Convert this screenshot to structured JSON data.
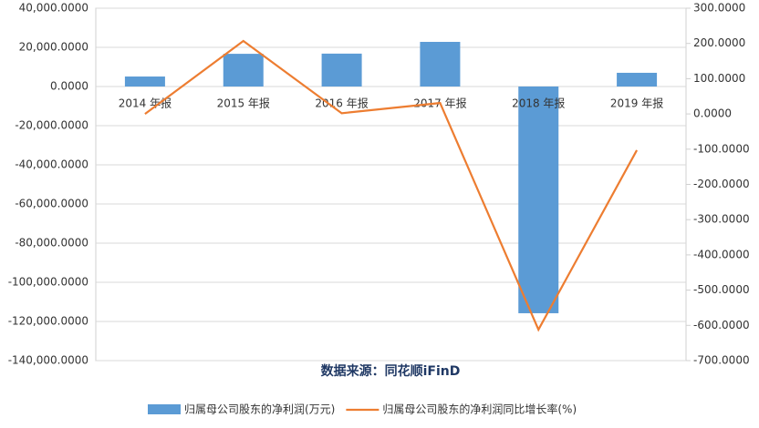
{
  "chart_data": {
    "type": "bar",
    "source": "数据来源：同花顺iFinD",
    "categories": [
      "2014 年报",
      "2015 年报",
      "2016 年报",
      "2017 年报",
      "2018 年报",
      "2019 年报"
    ],
    "series": [
      {
        "name": "归属母公司股东的净利润(万元)",
        "type": "bar",
        "color": "#5b9bd5",
        "values": [
          5100,
          16700,
          16800,
          22800,
          -115800,
          7000
        ]
      },
      {
        "name": "归属母公司股东的净利润同比增长率(%)",
        "type": "line",
        "axis": "y2",
        "color": "#ed7d31",
        "values": [
          0,
          207,
          2,
          31,
          -612,
          -103
        ]
      }
    ],
    "ylim": [
      -140000,
      40000
    ],
    "yticks": [
      {
        "value": -140000,
        "label": "-140,000.0000"
      },
      {
        "value": -120000,
        "label": "-120,000.0000"
      },
      {
        "value": -100000,
        "label": "-100,000.0000"
      },
      {
        "value": -80000,
        "label": "-80,000.0000"
      },
      {
        "value": -60000,
        "label": "-60,000.0000"
      },
      {
        "value": -40000,
        "label": "-40,000.0000"
      },
      {
        "value": -20000,
        "label": "-20,000.0000"
      },
      {
        "value": 0,
        "label": "0.0000"
      },
      {
        "value": 20000,
        "label": "20,000.0000"
      },
      {
        "value": 40000,
        "label": "40,000.0000"
      }
    ],
    "y2lim": [
      -700,
      300
    ],
    "y2ticks": [
      {
        "value": -700,
        "label": "-700.0000"
      },
      {
        "value": -600,
        "label": "-600.0000"
      },
      {
        "value": -500,
        "label": "-500.0000"
      },
      {
        "value": -400,
        "label": "-400.0000"
      },
      {
        "value": -300,
        "label": "-300.0000"
      },
      {
        "value": -200,
        "label": "-200.0000"
      },
      {
        "value": -100,
        "label": "-100.0000"
      },
      {
        "value": 0,
        "label": "0.0000"
      },
      {
        "value": 100,
        "label": "100.0000"
      },
      {
        "value": 200,
        "label": "200.0000"
      },
      {
        "value": 300,
        "label": "300.0000"
      }
    ],
    "grid": true
  }
}
